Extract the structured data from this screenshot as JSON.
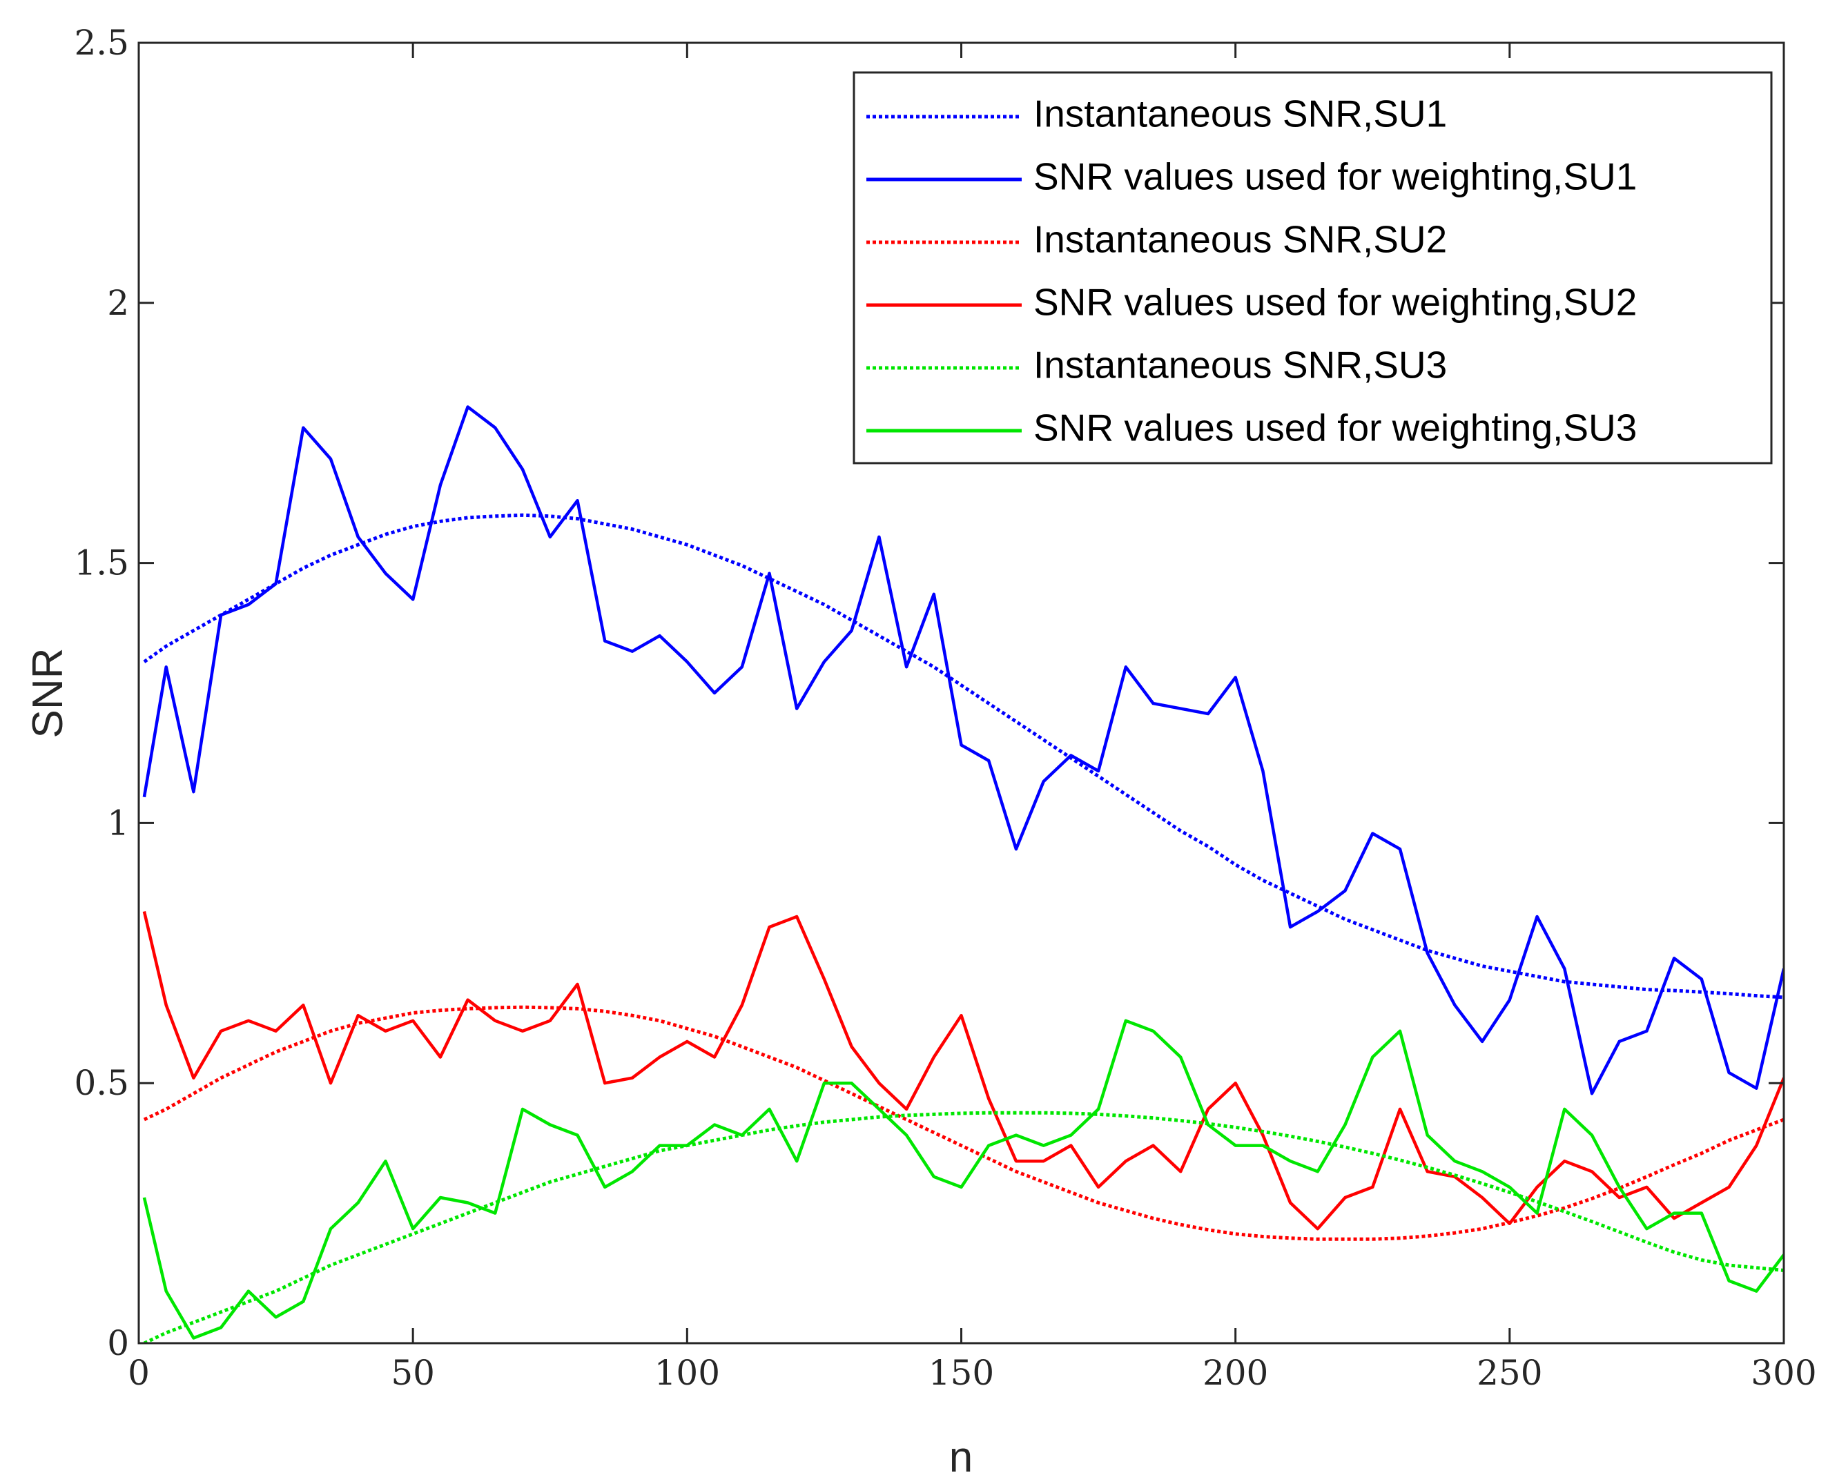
{
  "chart_data": {
    "type": "line",
    "xlabel": "n",
    "ylabel": "SNR",
    "xlim": [
      0,
      300
    ],
    "ylim": [
      0,
      2.5
    ],
    "xticks": [
      0,
      50,
      100,
      150,
      200,
      250,
      300
    ],
    "yticks": [
      0,
      0.5,
      1,
      1.5,
      2,
      2.5
    ],
    "legend": "upper right",
    "x": [
      1,
      5,
      10,
      15,
      20,
      25,
      30,
      35,
      40,
      45,
      50,
      55,
      60,
      65,
      70,
      75,
      80,
      85,
      90,
      95,
      100,
      105,
      110,
      115,
      120,
      125,
      130,
      135,
      140,
      145,
      150,
      155,
      160,
      165,
      170,
      175,
      180,
      185,
      190,
      195,
      200,
      205,
      210,
      215,
      220,
      225,
      230,
      235,
      240,
      245,
      250,
      255,
      260,
      265,
      270,
      275,
      280,
      285,
      290,
      295,
      300
    ],
    "series": [
      {
        "name": "Instantaneous SNR,SU1",
        "color": "#0000ff",
        "line_style": "dotted",
        "values": [
          1.31,
          1.34,
          1.37,
          1.4,
          1.43,
          1.46,
          1.49,
          1.515,
          1.535,
          1.555,
          1.57,
          1.58,
          1.587,
          1.59,
          1.592,
          1.59,
          1.585,
          1.575,
          1.565,
          1.55,
          1.535,
          1.515,
          1.495,
          1.47,
          1.445,
          1.42,
          1.39,
          1.36,
          1.33,
          1.3,
          1.265,
          1.23,
          1.195,
          1.16,
          1.125,
          1.09,
          1.055,
          1.02,
          0.985,
          0.955,
          0.92,
          0.89,
          0.865,
          0.84,
          0.815,
          0.795,
          0.775,
          0.755,
          0.74,
          0.725,
          0.715,
          0.705,
          0.695,
          0.69,
          0.685,
          0.68,
          0.678,
          0.675,
          0.672,
          0.668,
          0.665
        ]
      },
      {
        "name": "SNR values used for weighting,SU1",
        "color": "#0000ff",
        "line_style": "solid",
        "values": [
          1.05,
          1.3,
          1.06,
          1.4,
          1.42,
          1.46,
          1.76,
          1.7,
          1.55,
          1.48,
          1.43,
          1.65,
          1.8,
          1.76,
          1.68,
          1.55,
          1.62,
          1.35,
          1.33,
          1.36,
          1.31,
          1.25,
          1.3,
          1.48,
          1.22,
          1.31,
          1.37,
          1.55,
          1.3,
          1.44,
          1.15,
          1.12,
          0.95,
          1.08,
          1.13,
          1.1,
          1.3,
          1.23,
          1.22,
          1.21,
          1.28,
          1.1,
          0.8,
          0.83,
          0.87,
          0.98,
          0.95,
          0.75,
          0.65,
          0.58,
          0.66,
          0.82,
          0.72,
          0.48,
          0.58,
          0.6,
          0.74,
          0.7,
          0.52,
          0.49,
          0.72
        ]
      },
      {
        "name": "Instantaneous SNR,SU2",
        "color": "#ff0000",
        "line_style": "dotted",
        "values": [
          0.43,
          0.45,
          0.48,
          0.51,
          0.535,
          0.56,
          0.58,
          0.6,
          0.615,
          0.625,
          0.635,
          0.64,
          0.643,
          0.645,
          0.646,
          0.645,
          0.643,
          0.638,
          0.63,
          0.62,
          0.605,
          0.59,
          0.57,
          0.55,
          0.53,
          0.505,
          0.48,
          0.455,
          0.43,
          0.405,
          0.38,
          0.355,
          0.33,
          0.31,
          0.29,
          0.27,
          0.255,
          0.24,
          0.228,
          0.218,
          0.21,
          0.205,
          0.202,
          0.2,
          0.2,
          0.2,
          0.202,
          0.206,
          0.212,
          0.22,
          0.232,
          0.245,
          0.26,
          0.278,
          0.298,
          0.32,
          0.343,
          0.365,
          0.39,
          0.41,
          0.43
        ]
      },
      {
        "name": "SNR values used for weighting,SU2",
        "color": "#ff0000",
        "line_style": "solid",
        "values": [
          0.83,
          0.65,
          0.51,
          0.6,
          0.62,
          0.6,
          0.65,
          0.5,
          0.63,
          0.6,
          0.62,
          0.55,
          0.66,
          0.62,
          0.6,
          0.62,
          0.69,
          0.5,
          0.51,
          0.55,
          0.58,
          0.55,
          0.65,
          0.8,
          0.82,
          0.7,
          0.57,
          0.5,
          0.45,
          0.55,
          0.63,
          0.47,
          0.35,
          0.35,
          0.38,
          0.3,
          0.35,
          0.38,
          0.33,
          0.45,
          0.5,
          0.4,
          0.27,
          0.22,
          0.28,
          0.3,
          0.45,
          0.33,
          0.32,
          0.28,
          0.23,
          0.3,
          0.35,
          0.33,
          0.28,
          0.3,
          0.24,
          0.27,
          0.3,
          0.38,
          0.51
        ]
      },
      {
        "name": "Instantaneous SNR,SU3",
        "color": "#00e600",
        "line_style": "dotted",
        "values": [
          0.0,
          0.02,
          0.04,
          0.06,
          0.08,
          0.1,
          0.125,
          0.15,
          0.17,
          0.19,
          0.21,
          0.23,
          0.25,
          0.27,
          0.29,
          0.31,
          0.325,
          0.34,
          0.355,
          0.37,
          0.38,
          0.39,
          0.4,
          0.41,
          0.418,
          0.425,
          0.43,
          0.435,
          0.438,
          0.44,
          0.442,
          0.443,
          0.443,
          0.443,
          0.442,
          0.44,
          0.437,
          0.433,
          0.428,
          0.422,
          0.415,
          0.407,
          0.398,
          0.388,
          0.377,
          0.365,
          0.352,
          0.338,
          0.323,
          0.307,
          0.29,
          0.272,
          0.253,
          0.234,
          0.214,
          0.194,
          0.175,
          0.16,
          0.15,
          0.145,
          0.14
        ]
      },
      {
        "name": "SNR values used for weighting,SU3",
        "color": "#00e600",
        "line_style": "solid",
        "values": [
          0.28,
          0.1,
          0.01,
          0.03,
          0.1,
          0.05,
          0.08,
          0.22,
          0.27,
          0.35,
          0.22,
          0.28,
          0.27,
          0.25,
          0.45,
          0.42,
          0.4,
          0.3,
          0.33,
          0.38,
          0.38,
          0.42,
          0.4,
          0.45,
          0.35,
          0.5,
          0.5,
          0.45,
          0.4,
          0.32,
          0.3,
          0.38,
          0.4,
          0.38,
          0.4,
          0.45,
          0.62,
          0.6,
          0.55,
          0.42,
          0.38,
          0.38,
          0.35,
          0.33,
          0.42,
          0.55,
          0.6,
          0.4,
          0.35,
          0.33,
          0.3,
          0.25,
          0.45,
          0.4,
          0.3,
          0.22,
          0.25,
          0.25,
          0.12,
          0.1,
          0.17
        ]
      }
    ]
  }
}
